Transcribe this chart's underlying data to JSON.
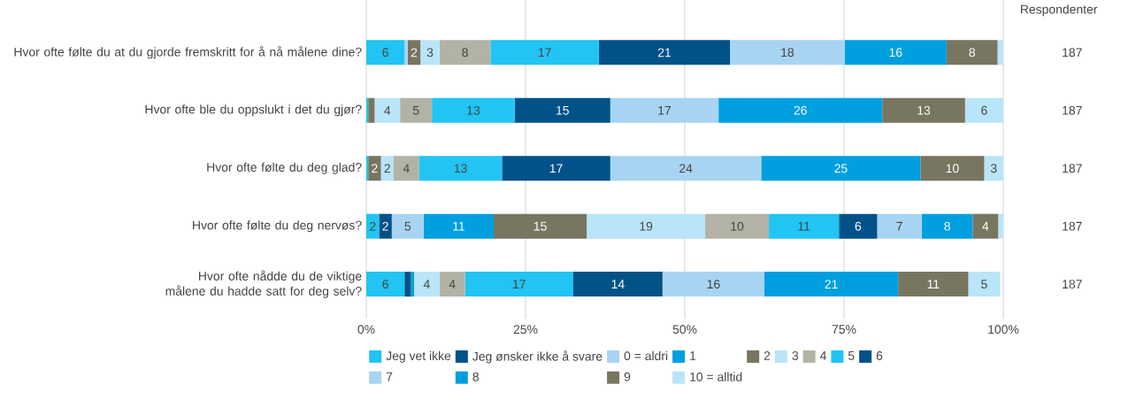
{
  "chart_data": {
    "type": "bar",
    "orientation": "horizontal",
    "stacked": true,
    "categories": [
      "Hvor ofte følte du at du gjorde fremskritt for å nå målene dine?",
      "Hvor ofte ble du oppslukt i det du gjør?",
      "Hvor ofte følte du deg glad?",
      "Hvor ofte følte du deg nervøs?",
      "Hvor ofte nådde du de viktige målene du hadde satt for deg selv?"
    ],
    "series": [
      {
        "name": "Jeg vet ikke",
        "color": "#21c4f2",
        "values": [
          6,
          0.3,
          0.3,
          2,
          6
        ],
        "value_labels": [
          "6",
          null,
          null,
          "2",
          "6"
        ]
      },
      {
        "name": "Jeg ønsker ikke å svare",
        "color": "#005288",
        "values": [
          null,
          null,
          null,
          2,
          1
        ],
        "value_labels": [
          null,
          null,
          null,
          "2",
          null
        ]
      },
      {
        "name": "0 = aldri",
        "color": "#a8d4f3",
        "values": [
          0.5,
          null,
          null,
          5,
          null
        ],
        "value_labels": [
          null,
          null,
          null,
          "5",
          null
        ]
      },
      {
        "name": "1",
        "color": "#009fe0",
        "values": [
          null,
          null,
          null,
          11,
          0.5
        ],
        "value_labels": [
          null,
          null,
          null,
          "11",
          null
        ]
      },
      {
        "name": "2",
        "color": "#787560",
        "values": [
          2,
          1,
          2,
          14.6,
          null
        ],
        "value_labels": [
          "2",
          null,
          "2",
          "15",
          null
        ]
      },
      {
        "name": "3",
        "color": "#b9e5f9",
        "values": [
          3,
          4,
          2,
          18.6,
          4
        ],
        "value_labels": [
          "3",
          "4",
          "2",
          "19",
          "4"
        ]
      },
      {
        "name": "4",
        "color": "#b3b3a5",
        "values": [
          8,
          5,
          4,
          10,
          4
        ],
        "value_labels": [
          "8",
          "5",
          "4",
          "10",
          "4"
        ]
      },
      {
        "name": "5",
        "color": "#21c4f2",
        "values": [
          17,
          13,
          13,
          11,
          17
        ],
        "value_labels": [
          "17",
          "13",
          "13",
          "11",
          "17"
        ]
      },
      {
        "name": "6",
        "color": "#005288",
        "values": [
          20.6,
          15,
          17,
          6,
          14
        ],
        "value_labels": [
          "21",
          "15",
          "17",
          "6",
          "14"
        ]
      },
      {
        "name": "7",
        "color": "#a8d4f3",
        "values": [
          18,
          17,
          23.7,
          7,
          16
        ],
        "value_labels": [
          "18",
          "17",
          "24",
          "7",
          "16"
        ]
      },
      {
        "name": "8",
        "color": "#009fe0",
        "values": [
          16,
          25.7,
          25,
          8,
          21
        ],
        "value_labels": [
          "16",
          "26",
          "25",
          "8",
          "21"
        ]
      },
      {
        "name": "9",
        "color": "#787560",
        "values": [
          8,
          13,
          10,
          4,
          11
        ],
        "value_labels": [
          "8",
          "13",
          "10",
          "4",
          "11"
        ]
      },
      {
        "name": "10 = alltid",
        "color": "#b9e5f9",
        "values": [
          0.9,
          6,
          3,
          0.8,
          5
        ],
        "value_labels": [
          null,
          "6",
          "3",
          null,
          "5"
        ]
      }
    ],
    "xlim": [
      0,
      100
    ],
    "xticks": [
      {
        "value": 0,
        "label": "0%"
      },
      {
        "value": 25,
        "label": "25%"
      },
      {
        "value": 50,
        "label": "50%"
      },
      {
        "value": 75,
        "label": "75%"
      },
      {
        "value": 100,
        "label": "100%"
      }
    ],
    "grid": "x",
    "legend": "bottom",
    "annotations": [
      "Respondenter",
      "187",
      "187",
      "187",
      "187",
      "187"
    ]
  }
}
